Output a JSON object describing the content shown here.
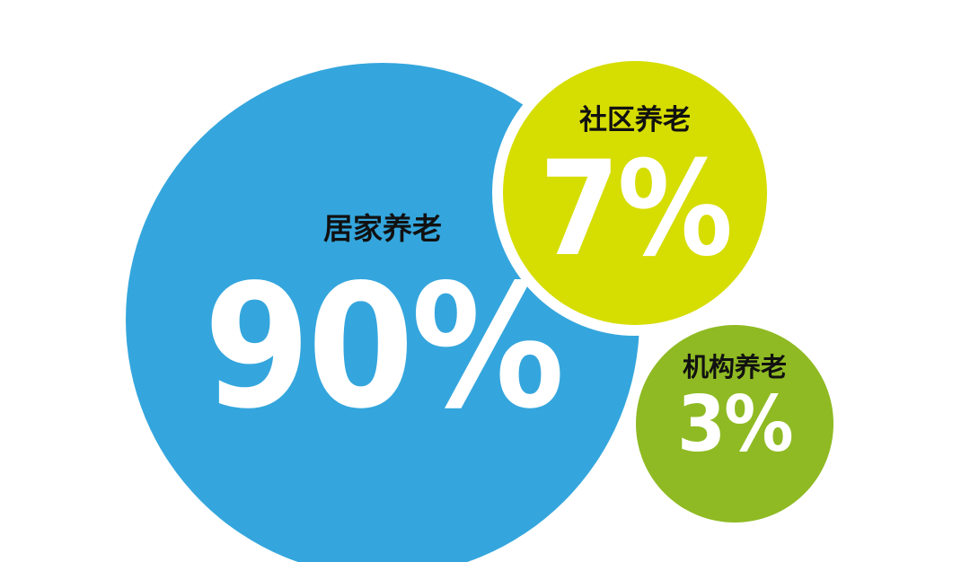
{
  "chart_data": {
    "type": "pie",
    "categories": [
      "居家养老",
      "社区养老",
      "机构养老"
    ],
    "values": [
      90,
      7,
      3
    ],
    "labels": [
      "90%",
      "7%",
      "3%"
    ],
    "unit": "%"
  },
  "colors": {
    "home": "#34a6dd",
    "community": "#d6dd00",
    "institution": "#8fba23",
    "label_text": "#111111",
    "value_text": "#ffffff",
    "background": "#ffffff"
  }
}
